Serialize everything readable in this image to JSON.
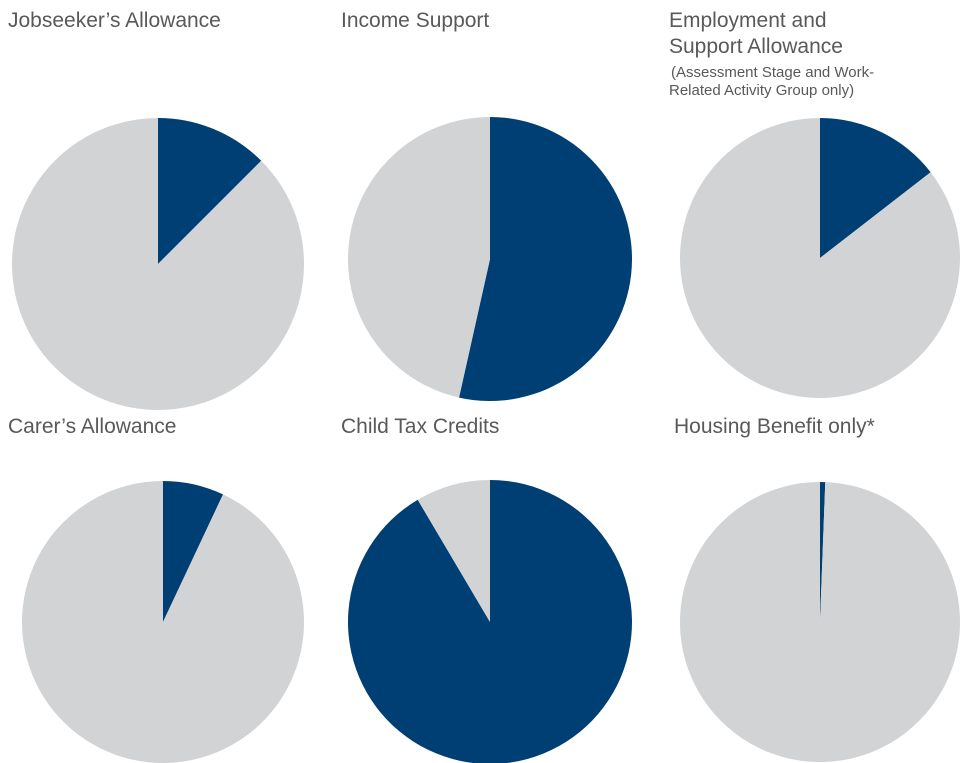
{
  "colors": {
    "share": "#003f74",
    "rest": "#d2d3d5"
  },
  "chart_data": [
    {
      "type": "pie",
      "title": "Jobseeker’s Allowance",
      "subtitle": "",
      "values": [
        12.5,
        87.5
      ]
    },
    {
      "type": "pie",
      "title": "Income Support",
      "subtitle": "",
      "values": [
        53.5,
        46.5
      ]
    },
    {
      "type": "pie",
      "title": "Employment and Support Allowance",
      "title_lines": [
        "Employment and",
        "Support Allowance"
      ],
      "subtitle": "(Assessment Stage and Work-Related Activity Group only)",
      "subtitle_lines": [
        "(Assessment Stage and Work-",
        "Related Activity Group only)"
      ],
      "values": [
        14.5,
        85.5
      ]
    },
    {
      "type": "pie",
      "title": "Carer’s Allowance",
      "subtitle": "",
      "values": [
        7.0,
        93.0
      ]
    },
    {
      "type": "pie",
      "title": "Child Tax Credits",
      "subtitle": "",
      "values": [
        91.5,
        8.5
      ]
    },
    {
      "type": "pie",
      "title": "Housing Benefit only*",
      "subtitle": "",
      "values": [
        0.6,
        99.4
      ]
    }
  ]
}
